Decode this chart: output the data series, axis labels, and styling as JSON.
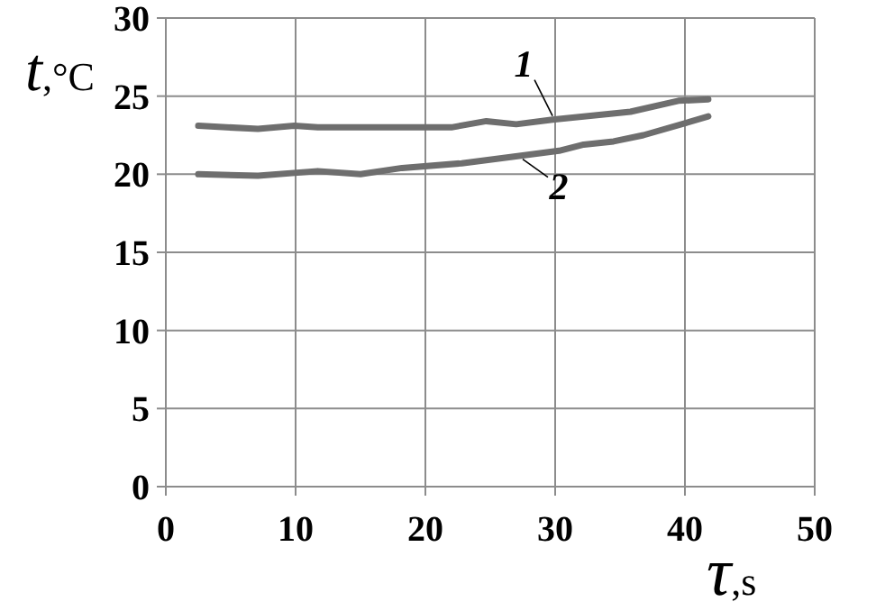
{
  "chart_data": {
    "type": "line",
    "xlabel": "τ,s",
    "ylabel": "t,°C",
    "xlim": [
      0,
      50
    ],
    "ylim": [
      0,
      30
    ],
    "xticks": [
      0,
      10,
      20,
      30,
      40,
      50
    ],
    "yticks": [
      0,
      5,
      10,
      15,
      20,
      25,
      30
    ],
    "grid": true,
    "marker": "none",
    "line_style": "solid",
    "series": [
      {
        "name": "1",
        "color": "#6e6e6e",
        "x": [
          2.5,
          7.1,
          9.9,
          11.7,
          18.2,
          22,
          24.7,
          27,
          29.8,
          35.8,
          39.5,
          41.8
        ],
        "values": [
          23.1,
          22.9,
          23.1,
          23,
          23,
          23,
          23.4,
          23.2,
          23.5,
          24,
          24.7,
          24.8
        ]
      },
      {
        "name": "2",
        "color": "#6e6e6e",
        "x": [
          2.5,
          7.1,
          11.7,
          15,
          18.2,
          22.8,
          27.5,
          30.3,
          32.2,
          34.5,
          36.8,
          41.8
        ],
        "values": [
          20,
          19.9,
          20.2,
          20,
          20.4,
          20.7,
          21.2,
          21.5,
          21.9,
          22.1,
          22.5,
          23.7
        ]
      }
    ]
  }
}
